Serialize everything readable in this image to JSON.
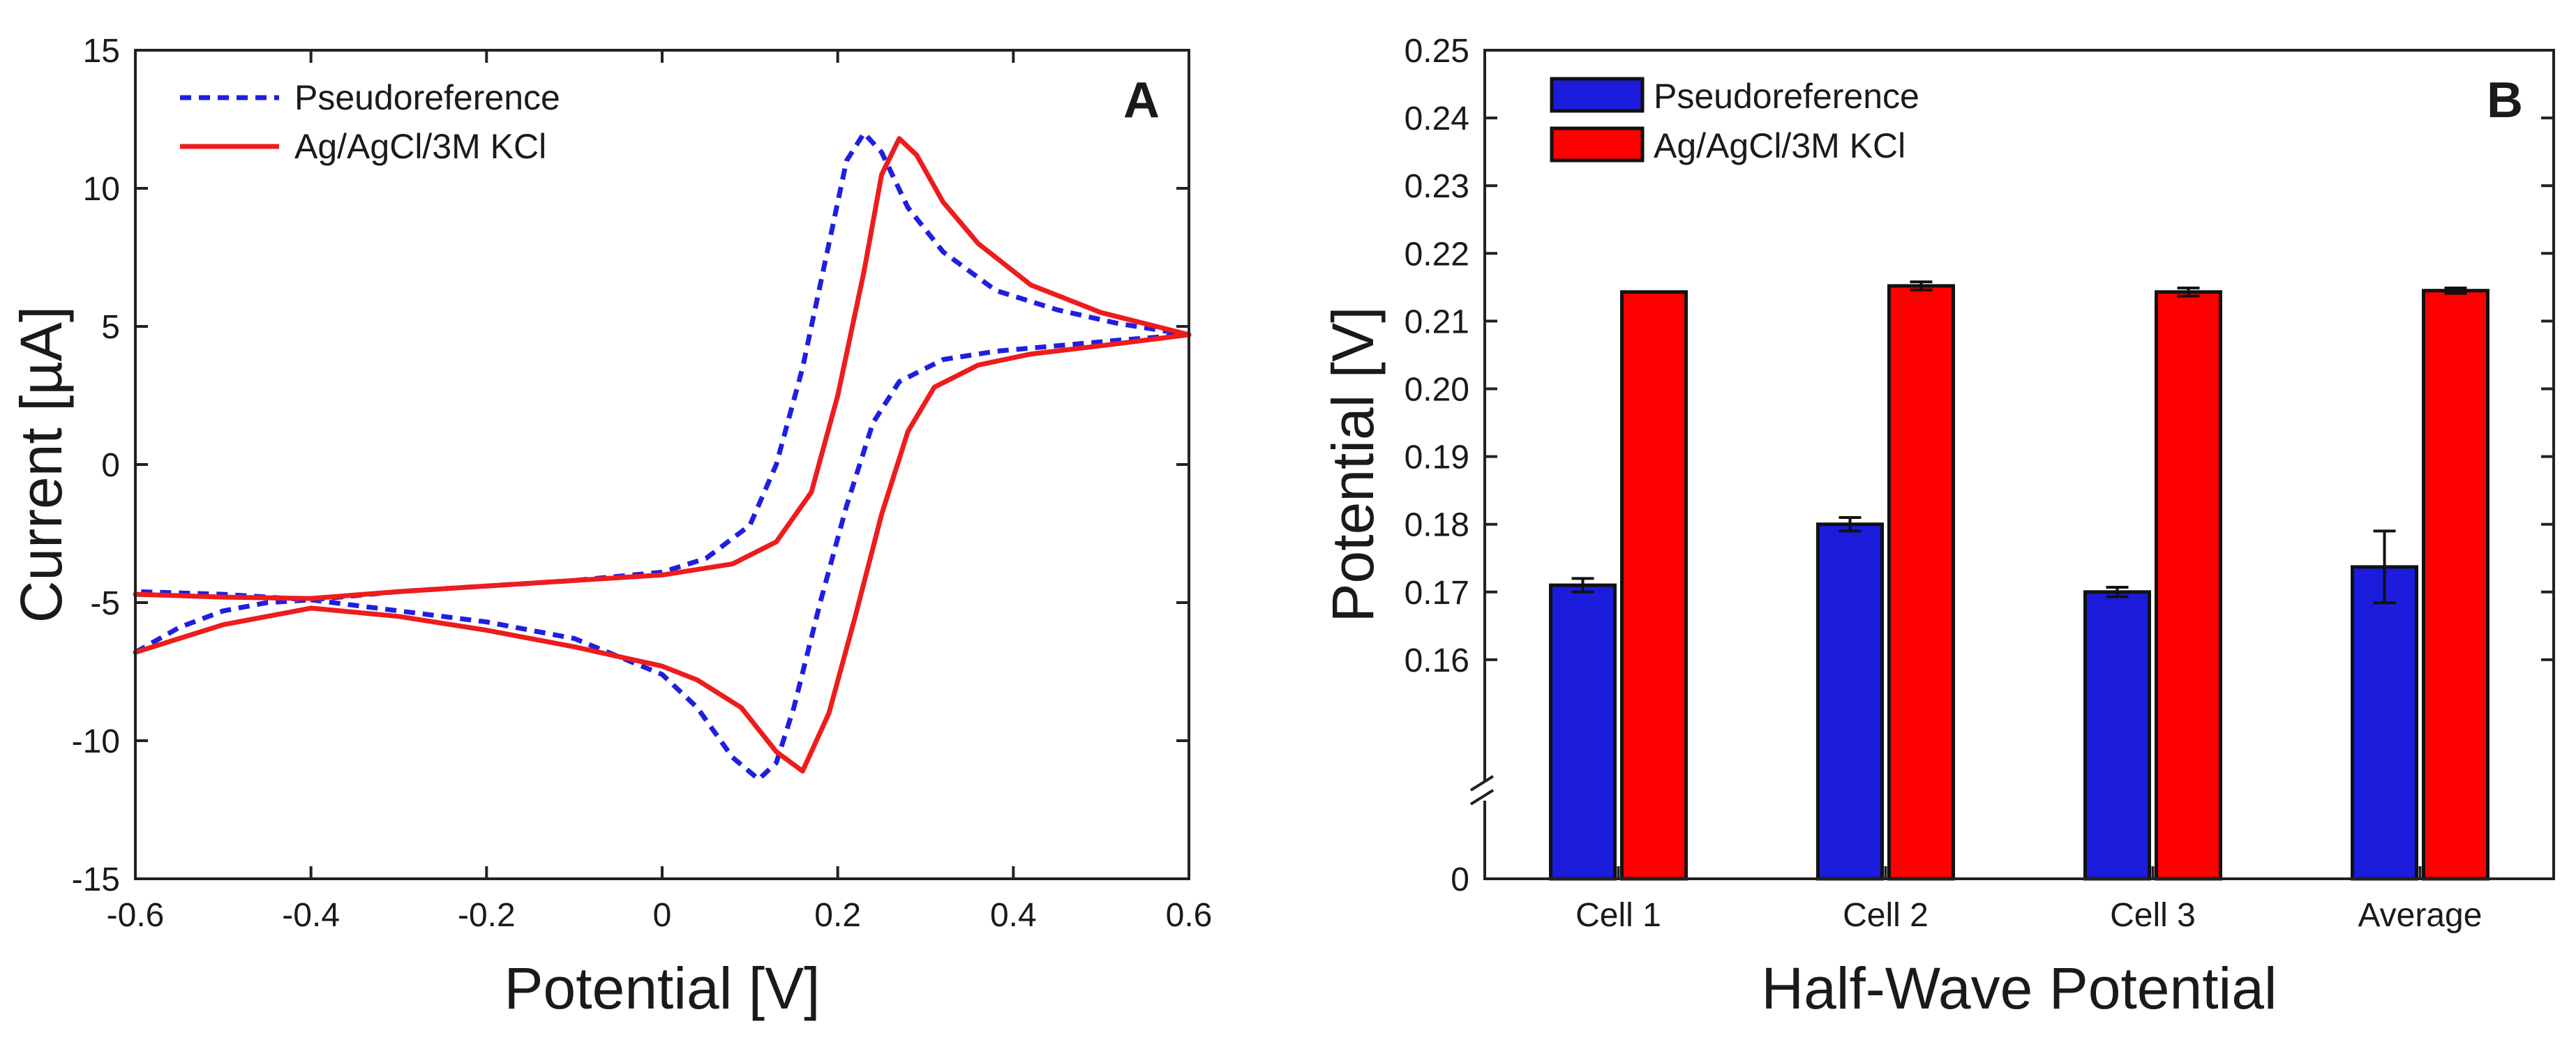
{
  "chart_data": [
    {
      "type": "line",
      "panel_label": "A",
      "xlabel": "Potential [V]",
      "ylabel": "Current [µA]",
      "xlim": [
        -0.6,
        0.6
      ],
      "ylim": [
        -15,
        15
      ],
      "x_ticks": [
        -0.6,
        -0.4,
        -0.2,
        0,
        0.2,
        0.4,
        0.6
      ],
      "x_tick_labels": [
        "-0.6",
        "-0.4",
        "-0.2",
        "0",
        "0.2",
        "0.4",
        "0.6"
      ],
      "y_ticks": [
        -15,
        -10,
        -5,
        0,
        5,
        10,
        15
      ],
      "y_tick_labels": [
        "-15",
        "-10",
        "-5",
        "0",
        "5",
        "10",
        "15"
      ],
      "grid": false,
      "legend_position": "top-left",
      "series": [
        {
          "name": "Pseudoreference",
          "color": "#1f1fe0",
          "style": "dashed",
          "points": [
            [
              -0.6,
              -6.8
            ],
            [
              -0.55,
              -5.9
            ],
            [
              -0.5,
              -5.3
            ],
            [
              -0.45,
              -5.0
            ],
            [
              -0.4,
              -4.9
            ],
            [
              -0.3,
              -4.6
            ],
            [
              -0.2,
              -4.4
            ],
            [
              -0.1,
              -4.2
            ],
            [
              0.0,
              -3.9
            ],
            [
              0.05,
              -3.4
            ],
            [
              0.1,
              -2.2
            ],
            [
              0.13,
              0.0
            ],
            [
              0.16,
              3.5
            ],
            [
              0.19,
              8.0
            ],
            [
              0.21,
              11.0
            ],
            [
              0.23,
              12.0
            ],
            [
              0.25,
              11.3
            ],
            [
              0.28,
              9.3
            ],
            [
              0.32,
              7.7
            ],
            [
              0.38,
              6.3
            ],
            [
              0.45,
              5.6
            ],
            [
              0.52,
              5.1
            ],
            [
              0.6,
              4.7
            ],
            [
              0.52,
              4.5
            ],
            [
              0.45,
              4.3
            ],
            [
              0.38,
              4.1
            ],
            [
              0.32,
              3.8
            ],
            [
              0.27,
              3.0
            ],
            [
              0.24,
              1.5
            ],
            [
              0.21,
              -1.5
            ],
            [
              0.18,
              -5.0
            ],
            [
              0.15,
              -8.8
            ],
            [
              0.13,
              -10.8
            ],
            [
              0.11,
              -11.4
            ],
            [
              0.08,
              -10.6
            ],
            [
              0.04,
              -8.8
            ],
            [
              0.0,
              -7.6
            ],
            [
              -0.1,
              -6.3
            ],
            [
              -0.2,
              -5.7
            ],
            [
              -0.3,
              -5.3
            ],
            [
              -0.4,
              -4.9
            ],
            [
              -0.5,
              -4.7
            ],
            [
              -0.6,
              -4.6
            ]
          ]
        },
        {
          "name": "Ag/AgCl/3M KCl",
          "color": "#ee1c1c",
          "style": "solid",
          "points": [
            [
              -0.6,
              -4.7
            ],
            [
              -0.5,
              -4.8
            ],
            [
              -0.4,
              -4.85
            ],
            [
              -0.3,
              -4.6
            ],
            [
              -0.2,
              -4.4
            ],
            [
              -0.1,
              -4.2
            ],
            [
              0.0,
              -4.0
            ],
            [
              0.08,
              -3.6
            ],
            [
              0.13,
              -2.8
            ],
            [
              0.17,
              -1.0
            ],
            [
              0.2,
              2.5
            ],
            [
              0.23,
              7.0
            ],
            [
              0.25,
              10.5
            ],
            [
              0.27,
              11.8
            ],
            [
              0.29,
              11.2
            ],
            [
              0.32,
              9.5
            ],
            [
              0.36,
              8.0
            ],
            [
              0.42,
              6.5
            ],
            [
              0.5,
              5.5
            ],
            [
              0.6,
              4.7
            ],
            [
              0.5,
              4.3
            ],
            [
              0.42,
              4.0
            ],
            [
              0.36,
              3.6
            ],
            [
              0.31,
              2.8
            ],
            [
              0.28,
              1.2
            ],
            [
              0.25,
              -1.8
            ],
            [
              0.22,
              -5.5
            ],
            [
              0.19,
              -9.0
            ],
            [
              0.16,
              -11.1
            ],
            [
              0.13,
              -10.4
            ],
            [
              0.09,
              -8.8
            ],
            [
              0.04,
              -7.8
            ],
            [
              0.0,
              -7.3
            ],
            [
              -0.1,
              -6.6
            ],
            [
              -0.2,
              -6.0
            ],
            [
              -0.3,
              -5.5
            ],
            [
              -0.4,
              -5.2
            ],
            [
              -0.5,
              -5.8
            ],
            [
              -0.6,
              -6.8
            ]
          ]
        }
      ]
    },
    {
      "type": "bar",
      "panel_label": "B",
      "title": "",
      "xlabel": "Half-Wave Potential",
      "ylabel": "Potential [V]",
      "categories": [
        "Cell 1",
        "Cell 2",
        "Cell 3",
        "Average"
      ],
      "ylim": [
        0.15,
        0.25
      ],
      "axis_break": true,
      "y_ticks": [
        0,
        0.16,
        0.17,
        0.18,
        0.19,
        0.2,
        0.21,
        0.22,
        0.23,
        0.24,
        0.25
      ],
      "y_tick_labels": [
        "0",
        "0.16",
        "0.17",
        "0.18",
        "0.19",
        "0.20",
        "0.21",
        "0.22",
        "0.23",
        "0.24",
        "0.25"
      ],
      "legend_position": "top-left",
      "series": [
        {
          "name": "Pseudoreference",
          "color": "#1c1cdc",
          "values": [
            0.171,
            0.18,
            0.17,
            0.1737
          ],
          "errors": [
            0.001,
            0.001,
            0.0007,
            0.0053
          ]
        },
        {
          "name": "Ag/AgCl/3M KCl",
          "color": "#fe0000",
          "values": [
            0.2143,
            0.2152,
            0.2143,
            0.2145
          ],
          "errors": [
            0.0,
            0.0006,
            0.0006,
            0.0004
          ]
        }
      ]
    }
  ]
}
